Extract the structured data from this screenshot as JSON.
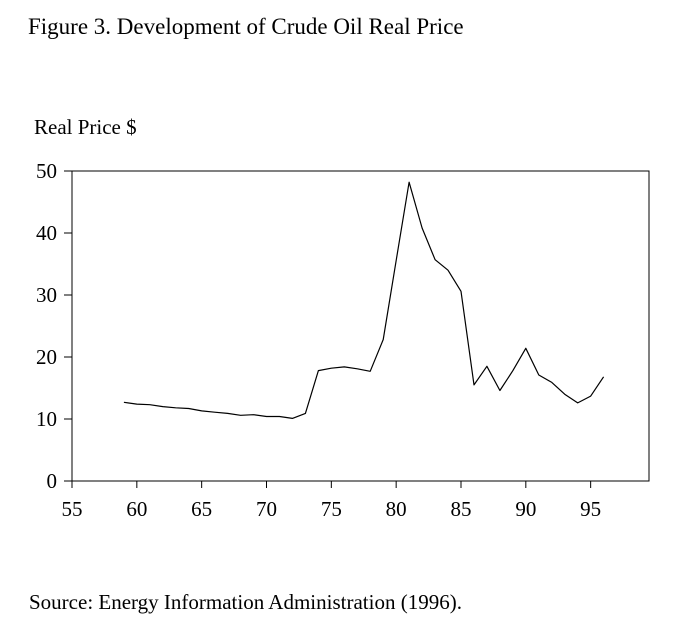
{
  "chart_data": {
    "type": "line",
    "title": "Figure 3. Development of Crude Oil Real Price",
    "ylabel": "Real Price $",
    "xlabel": "",
    "source": "Source: Energy Information Administration (1996).",
    "xlim": [
      55,
      99.5
    ],
    "ylim": [
      0,
      50
    ],
    "x_ticks": [
      55,
      60,
      65,
      70,
      75,
      80,
      85,
      90,
      95
    ],
    "y_ticks": [
      0,
      10,
      20,
      30,
      40,
      50
    ],
    "grid": false,
    "legend": "none",
    "line_color": "#000000",
    "series": [
      {
        "x": [
          59,
          60,
          61,
          62,
          63,
          64,
          65,
          66,
          67,
          68,
          69,
          70,
          71,
          72,
          73,
          74,
          75,
          76,
          77,
          78,
          79,
          80,
          81,
          82,
          83,
          84,
          85,
          86,
          87,
          88,
          89,
          90,
          91,
          92,
          93,
          94,
          95,
          96
        ],
        "values": [
          12.7,
          12.4,
          12.3,
          12.0,
          11.8,
          11.7,
          11.3,
          11.1,
          10.9,
          10.6,
          10.7,
          10.4,
          10.4,
          10.1,
          10.9,
          17.8,
          18.2,
          18.4,
          18.1,
          17.7,
          22.8,
          35.6,
          48.2,
          40.8,
          35.7,
          34.0,
          30.6,
          15.5,
          18.5,
          14.6,
          17.8,
          21.4,
          17.1,
          15.9,
          14.0,
          12.6,
          13.7,
          16.8
        ]
      }
    ]
  }
}
